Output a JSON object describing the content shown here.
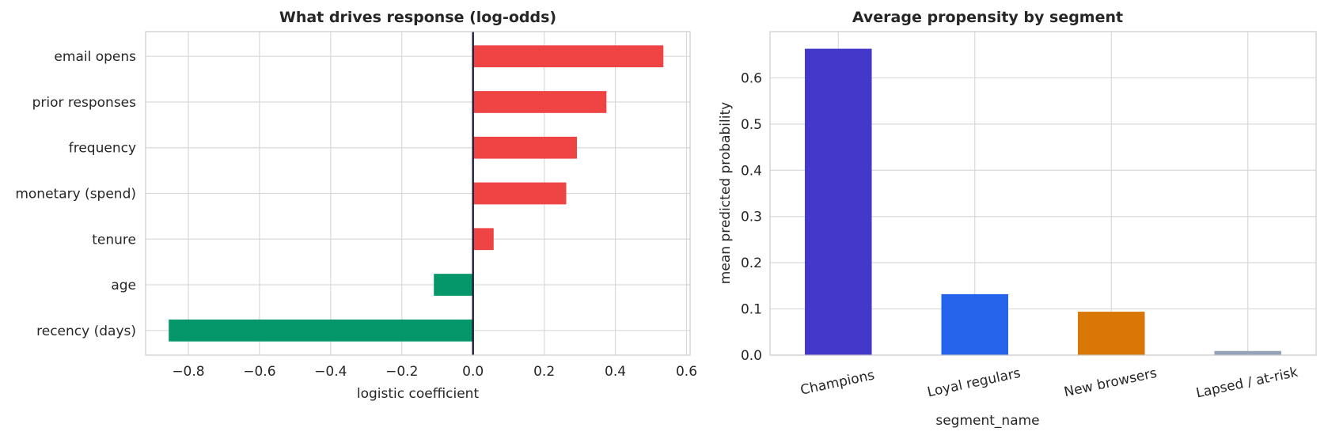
{
  "chart_data": [
    {
      "type": "bar",
      "orientation": "horizontal",
      "title": "What drives response (log-odds)",
      "xlabel": "logistic coefficient",
      "ylabel": "",
      "xlim": [
        -0.92,
        0.61
      ],
      "xticks": [
        -0.8,
        -0.6,
        -0.4,
        -0.2,
        0.0,
        0.2,
        0.4,
        0.6
      ],
      "xtick_labels": [
        "−0.8",
        "−0.6",
        "−0.4",
        "−0.2",
        "0.0",
        "0.2",
        "0.4",
        "0.6"
      ],
      "grid": true,
      "zero_line": true,
      "positive_color": "#ef4444",
      "negative_color": "#059669",
      "zero_line_color": "#1e1e3a",
      "categories": [
        "email opens",
        "prior responses",
        "frequency",
        "monetary (spend)",
        "tenure",
        "age",
        "recency (days)"
      ],
      "values": [
        0.535,
        0.375,
        0.292,
        0.262,
        0.058,
        -0.11,
        -0.855
      ]
    },
    {
      "type": "bar",
      "orientation": "vertical",
      "title": "Average propensity by segment",
      "xlabel": "segment_name",
      "ylabel": "mean predicted probability",
      "ylim": [
        0,
        0.7
      ],
      "yticks": [
        0.0,
        0.1,
        0.2,
        0.3,
        0.4,
        0.5,
        0.6
      ],
      "ytick_labels": [
        "0.0",
        "0.1",
        "0.2",
        "0.3",
        "0.4",
        "0.5",
        "0.6"
      ],
      "grid": true,
      "categories": [
        "Champions",
        "Loyal regulars",
        "New browsers",
        "Lapsed / at-risk"
      ],
      "values": [
        0.663,
        0.132,
        0.094,
        0.009
      ],
      "colors": [
        "#4338ca",
        "#2563eb",
        "#d97706",
        "#94a3b8"
      ]
    }
  ]
}
